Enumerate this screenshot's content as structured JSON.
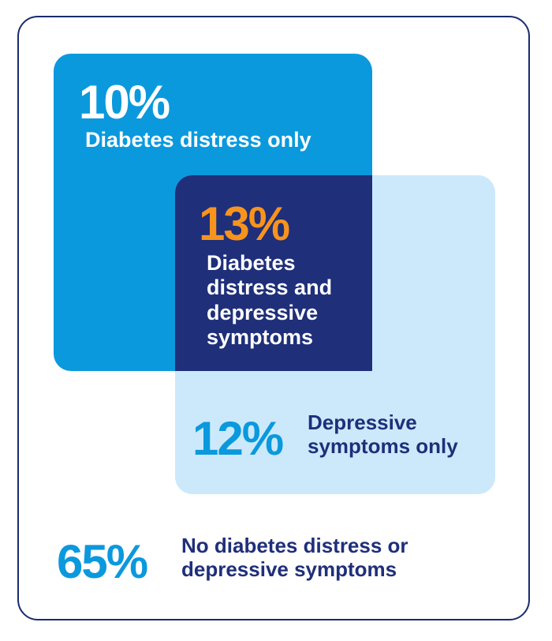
{
  "colors": {
    "frame_border": "#1a2b6e",
    "distress_only": "#0a99dd",
    "depressive_only": "#cce9fb",
    "overlap": "#1f2f7a",
    "overlap_percent": "#f7941d",
    "navy_text": "#1f2f7a",
    "blue_text": "#0a99dd"
  },
  "diagram": {
    "distress_only": {
      "percent": "10%",
      "label": "Diabetes distress only"
    },
    "both": {
      "percent": "13%",
      "label": "Diabetes distress and depressive symptoms"
    },
    "depressive_only": {
      "percent": "12%",
      "label": "Depressive symptoms only"
    },
    "neither": {
      "percent": "65%",
      "label": "No diabetes distress or depressive symptoms"
    }
  }
}
